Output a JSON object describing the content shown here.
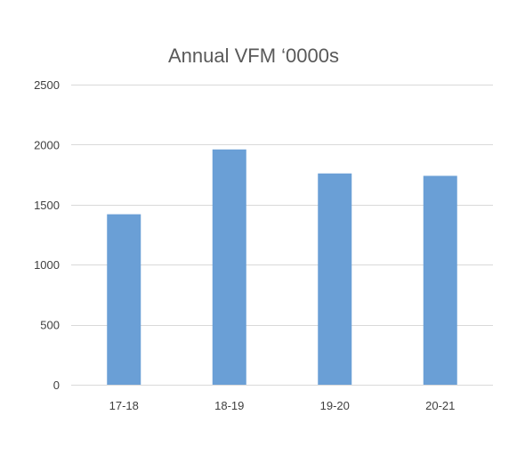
{
  "chart_data": {
    "type": "bar",
    "title": "Annual VFM ‘0000s",
    "xlabel": "",
    "ylabel": "",
    "categories": [
      "17-18",
      "18-19",
      "19-20",
      "20-21"
    ],
    "values": [
      1420,
      1960,
      1760,
      1740
    ],
    "ylim": [
      0,
      2500
    ],
    "yticks": [
      0,
      500,
      1000,
      1500,
      2000,
      2500
    ],
    "ytick_labels": [
      "0",
      "500",
      "1000",
      "1500",
      "2000",
      "2500"
    ],
    "grid": true,
    "legend": "none",
    "bar_color": "#6a9fd6"
  }
}
